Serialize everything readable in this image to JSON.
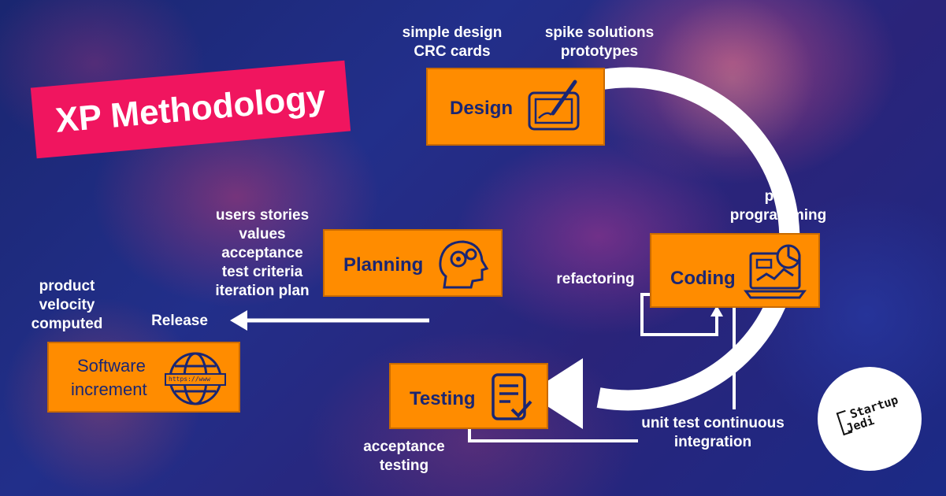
{
  "title": "XP Methodology",
  "stages": {
    "design": "Design",
    "coding": "Coding",
    "testing": "Testing",
    "planning": "Planning",
    "software_line1": "Software",
    "software_line2": "increment",
    "url": "https://www"
  },
  "notes": {
    "design_left_1": "simple design",
    "design_left_2": "CRC cards",
    "design_right_1": "spike solutions",
    "design_right_2": "prototypes",
    "coding_1": "pair",
    "coding_2": "programming",
    "refactoring": "refactoring",
    "planning_1": "users stories",
    "planning_2": "values",
    "planning_3": "acceptance",
    "planning_4": "test criteria",
    "planning_5": "iteration plan",
    "product_1": "product",
    "product_2": "velocity",
    "product_3": "computed",
    "release": "Release",
    "unit_1": "unit test continuous",
    "unit_2": "integration",
    "accept_1": "acceptance",
    "accept_2": "testing"
  },
  "logo": {
    "line1": "Startup",
    "line2": "Jedi"
  },
  "colors": {
    "accent": "#ff8c00",
    "banner": "#f0155f",
    "ink": "#1a2673"
  },
  "icons": [
    "tablet-pen-icon",
    "head-gears-icon",
    "laptop-chart-icon",
    "document-check-icon",
    "globe-icon"
  ]
}
